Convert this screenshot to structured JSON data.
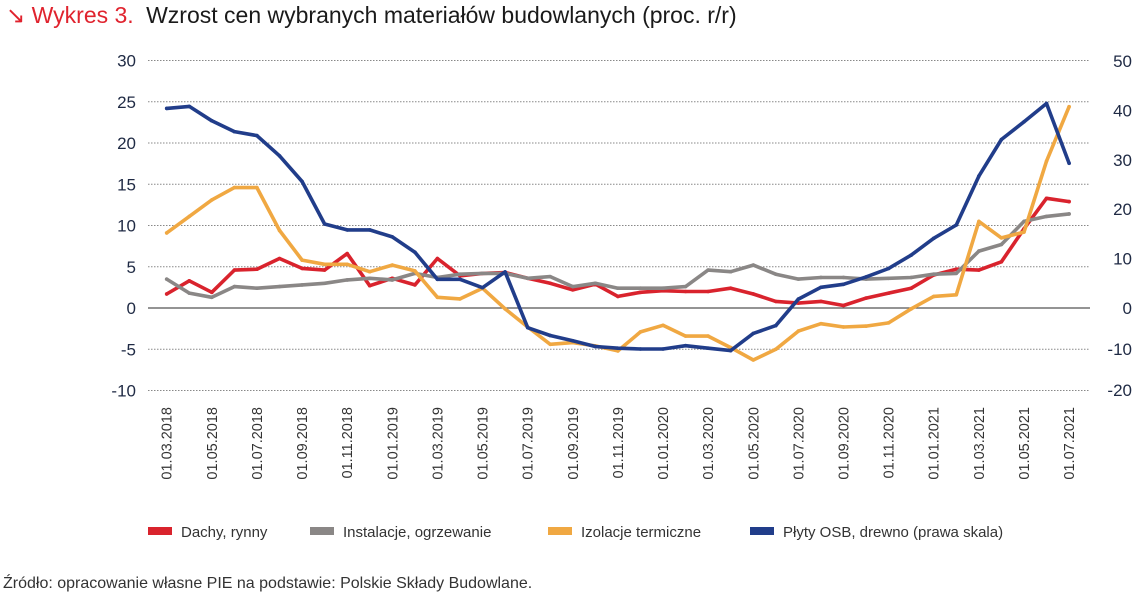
{
  "title": {
    "arrow_icon": "arrow-down-right",
    "lead": "Wykres 3.",
    "main": "Wzrost cen wybranych materiałów budowlanych (proc. r/r)"
  },
  "source": "Źródło: opracowanie własne PIE na podstawie: Polskie Składy Budowlane.",
  "chart_data": {
    "type": "line",
    "title": "Wzrost cen wybranych materiałów budowlanych (proc. r/r)",
    "xlabel": "",
    "ylabel": "",
    "x_tick_labels": [
      "01.03.2018",
      "01.05.2018",
      "01.07.2018",
      "01.09.2018",
      "01.11.2018",
      "01.01.2019",
      "01.03.2019",
      "01.05.2019",
      "01.07.2019",
      "01.09.2019",
      "01.11.2019",
      "01.01.2020",
      "01.03.2020",
      "01.05.2020",
      "01.07.2020",
      "01.09.2020",
      "01.11.2020",
      "01.01.2021",
      "01.03.2021",
      "01.05.2021",
      "01.07.2021"
    ],
    "x_frequency": "monthly, 01.03.2018 – 01.07.2021",
    "y_left": {
      "ticks": [
        30,
        25,
        20,
        15,
        10,
        5,
        0,
        -5,
        -10
      ],
      "ylim": [
        -10,
        30
      ]
    },
    "y_right": {
      "ticks": [
        50,
        40,
        30,
        20,
        10,
        0,
        -10,
        -20
      ],
      "ylim": [
        -20,
        50
      ]
    },
    "grid": true,
    "legend_position": "bottom",
    "series": [
      {
        "name": "Dachy, rynny",
        "axis": "left",
        "color": "#d9232d",
        "values": [
          1.7,
          3.3,
          1.9,
          4.6,
          4.7,
          6.0,
          4.8,
          4.6,
          6.6,
          2.7,
          3.6,
          2.8,
          6.0,
          3.9,
          4.2,
          4.3,
          3.6,
          3.0,
          2.2,
          2.9,
          1.4,
          1.9,
          2.1,
          2.0,
          2.0,
          2.4,
          1.7,
          0.8,
          0.6,
          0.8,
          0.3,
          1.2,
          1.8,
          2.4,
          4.0,
          4.7,
          4.6,
          5.6,
          9.6,
          13.3,
          12.9
        ]
      },
      {
        "name": "Instalacje, ogrzewanie",
        "axis": "left",
        "color": "#8a8786",
        "values": [
          3.5,
          1.8,
          1.3,
          2.6,
          2.4,
          2.6,
          2.8,
          3.0,
          3.4,
          3.6,
          3.4,
          4.2,
          3.7,
          4.1,
          4.2,
          4.2,
          3.6,
          3.8,
          2.6,
          3.0,
          2.4,
          2.4,
          2.4,
          2.6,
          4.6,
          4.4,
          5.2,
          4.1,
          3.5,
          3.7,
          3.7,
          3.5,
          3.6,
          3.7,
          4.1,
          4.2,
          6.9,
          7.7,
          10.5,
          11.1,
          11.4
        ]
      },
      {
        "name": "Izolacje termiczne",
        "axis": "left",
        "color": "#f0a842",
        "values": [
          9.1,
          11.1,
          13.1,
          14.6,
          14.6,
          9.4,
          5.8,
          5.3,
          5.3,
          4.4,
          5.2,
          4.5,
          1.3,
          1.1,
          2.4,
          -0.1,
          -2.3,
          -4.4,
          -4.2,
          -4.6,
          -5.2,
          -2.9,
          -2.1,
          -3.4,
          -3.4,
          -4.8,
          -6.3,
          -5.0,
          -2.8,
          -1.9,
          -2.3,
          -2.2,
          -1.8,
          -0.1,
          1.4,
          1.6,
          10.5,
          8.5,
          9.2,
          17.8,
          24.4
        ]
      },
      {
        "name": "Płyty OSB, drewno (prawa skala)",
        "axis": "right",
        "color": "#213d8a",
        "values": [
          40.4,
          40.8,
          37.9,
          35.7,
          34.9,
          30.8,
          25.6,
          17.0,
          15.8,
          15.8,
          14.4,
          11.3,
          5.8,
          5.8,
          4.1,
          7.3,
          -4.8,
          -6.7,
          -8.0,
          -9.4,
          -9.8,
          -10.0,
          -10.0,
          -9.2,
          -9.8,
          -10.4,
          -6.2,
          -4.3,
          1.8,
          4.2,
          4.8,
          6.3,
          8.0,
          10.7,
          14.1,
          16.8,
          26.7,
          34.1,
          37.7,
          41.4,
          29.3
        ]
      }
    ]
  }
}
